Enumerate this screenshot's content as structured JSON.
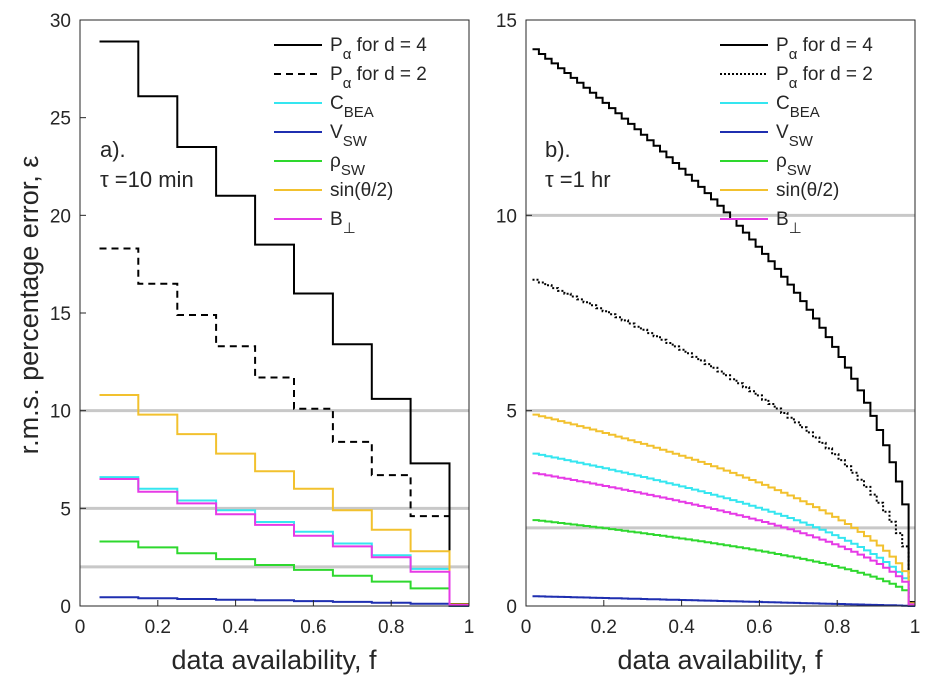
{
  "figure": {
    "ylabel": "r.m.s. percentage error, ε",
    "colors": {
      "P4": "#000000",
      "P2": "#000000",
      "C": "#35e6f0",
      "V": "#1f2fb0",
      "rho": "#2ed82e",
      "sin": "#f2c12e",
      "B": "#e63ae6",
      "ref_line": "#c8c8c8"
    }
  },
  "chart_data": [
    {
      "type": "line",
      "panel_label": "a).",
      "tau_label": "τ =10 min",
      "xlabel": "data availability, f",
      "ylabel": "r.m.s. percentage error, ε",
      "xlim": [
        0,
        1
      ],
      "ylim": [
        0,
        30
      ],
      "xticks": [
        "0",
        "0.2",
        "0.4",
        "0.6",
        "0.8",
        "1"
      ],
      "yticks": [
        "0",
        "5",
        "10",
        "15",
        "20",
        "25",
        "30"
      ],
      "reference_lines": [
        10,
        5,
        2
      ],
      "legend_position": "top-right",
      "step": true,
      "x_edges": [
        0.05,
        0.15,
        0.25,
        0.35,
        0.45,
        0.55,
        0.65,
        0.75,
        0.85,
        0.95,
        1.0
      ],
      "series": [
        {
          "key": "P4",
          "name": "Pα for d = 4",
          "style": "solid",
          "values": [
            28.9,
            26.1,
            23.5,
            21.0,
            18.5,
            16.0,
            13.4,
            10.6,
            7.3,
            0.1
          ]
        },
        {
          "key": "P2",
          "name": "Pα for d = 2",
          "style": "dashed",
          "values": [
            18.3,
            16.5,
            14.9,
            13.3,
            11.7,
            10.1,
            8.4,
            6.7,
            4.6,
            0.1
          ]
        },
        {
          "key": "C",
          "name": "CBEA",
          "style": "solid",
          "values": [
            6.6,
            6.0,
            5.4,
            4.9,
            4.3,
            3.8,
            3.2,
            2.6,
            1.9,
            0.05
          ]
        },
        {
          "key": "V",
          "name": "VSW",
          "style": "solid",
          "values": [
            0.45,
            0.4,
            0.36,
            0.32,
            0.29,
            0.25,
            0.21,
            0.17,
            0.12,
            0.0
          ]
        },
        {
          "key": "rho",
          "name": "ρSW",
          "style": "solid",
          "values": [
            3.3,
            3.0,
            2.7,
            2.4,
            2.1,
            1.85,
            1.55,
            1.25,
            0.9,
            0.02
          ]
        },
        {
          "key": "sin",
          "name": "sin(θ/2)",
          "style": "solid",
          "values": [
            10.8,
            9.8,
            8.8,
            7.8,
            6.9,
            6.0,
            4.9,
            3.9,
            2.8,
            0.08
          ]
        },
        {
          "key": "B",
          "name": "B⊥",
          "style": "solid",
          "values": [
            6.5,
            5.85,
            5.25,
            4.7,
            4.15,
            3.6,
            3.05,
            2.5,
            1.75,
            0.05
          ]
        }
      ]
    },
    {
      "type": "line",
      "panel_label": "b).",
      "tau_label": "τ =1 hr",
      "xlabel": "data availability, f",
      "xlim": [
        0,
        1
      ],
      "ylim": [
        0,
        15
      ],
      "xticks": [
        "0",
        "0.2",
        "0.4",
        "0.6",
        "0.8",
        "1"
      ],
      "yticks": [
        "0",
        "5",
        "10",
        "15"
      ],
      "reference_lines": [
        10,
        5,
        2
      ],
      "legend_position": "top-right",
      "step": true,
      "f_start": 0.01666,
      "f_end": 1.0,
      "steps": 60,
      "series": [
        {
          "key": "P4",
          "name": "Pα for d = 4",
          "style": "solid",
          "start_value": 14.25,
          "exponent": 0.5,
          "min_value": 0.1
        },
        {
          "key": "P2",
          "name": "Pα for d = 2",
          "style": "dotted",
          "start_value": 8.35,
          "exponent": 0.5,
          "min_value": 0.1
        },
        {
          "key": "C",
          "name": "CBEA",
          "style": "solid",
          "start_value": 3.9,
          "exponent": 0.5,
          "min_value": 0.05
        },
        {
          "key": "V",
          "name": "VSW",
          "style": "solid",
          "start_value": 0.25,
          "exponent": 1.0,
          "min_value": 0.0
        },
        {
          "key": "rho",
          "name": "ρSW",
          "style": "solid",
          "start_value": 2.2,
          "exponent": 0.5,
          "min_value": 0.02
        },
        {
          "key": "sin",
          "name": "sin(θ/2)",
          "style": "solid",
          "start_value": 4.9,
          "exponent": 0.5,
          "min_value": 0.07
        },
        {
          "key": "B",
          "name": "B⊥",
          "style": "solid",
          "start_value": 3.4,
          "exponent": 0.5,
          "min_value": 0.04
        }
      ]
    }
  ]
}
